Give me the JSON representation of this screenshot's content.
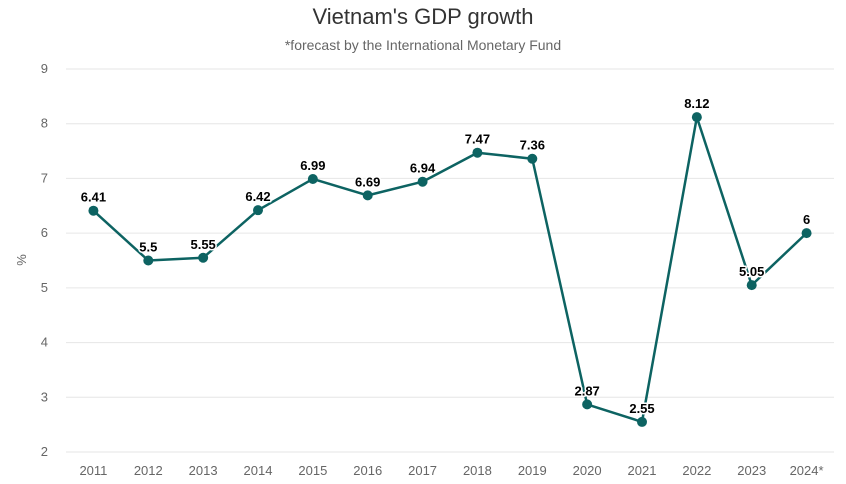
{
  "chart_data": {
    "type": "line",
    "title": "Vietnam's GDP growth",
    "subtitle": "*forecast by the International Monetary Fund",
    "xlabel": "",
    "ylabel": "%",
    "categories": [
      "2011",
      "2012",
      "2013",
      "2014",
      "2015",
      "2016",
      "2017",
      "2018",
      "2019",
      "2020",
      "2021",
      "2022",
      "2023",
      "2024*"
    ],
    "series": [
      {
        "values": [
          6.41,
          5.5,
          5.55,
          6.42,
          6.99,
          6.69,
          6.94,
          7.47,
          7.36,
          2.87,
          2.55,
          8.12,
          5.05,
          6
        ],
        "labels": [
          "6.41",
          "5.5",
          "5.55",
          "6.42",
          "6.99",
          "6.69",
          "6.94",
          "7.47",
          "7.36",
          "2.87",
          "2.55",
          "8.12",
          "5.05",
          "6"
        ]
      }
    ],
    "ylim": [
      2,
      9
    ],
    "yticks": [
      "2",
      "3",
      "4",
      "5",
      "6",
      "7",
      "8",
      "9"
    ],
    "grid": true,
    "legend": "none",
    "colors": {
      "line": "#0d6362",
      "marker": "#0d6362"
    }
  }
}
